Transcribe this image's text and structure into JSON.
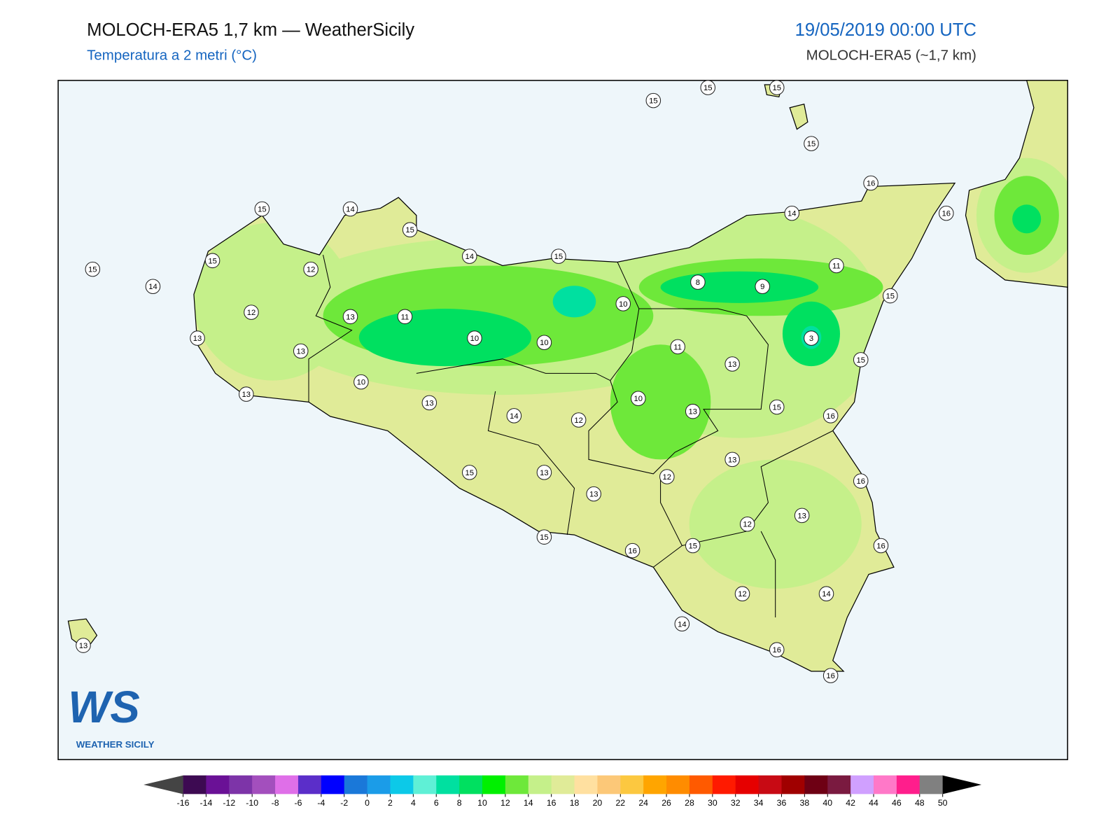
{
  "header": {
    "title": "MOLOCH-ERA5 1,7 km — WeatherSicily",
    "subtitle": "Temperatura a 2 metri (°C)",
    "date": "19/05/2019 00:00 UTC",
    "model": "MOLOCH-ERA5 (~1,7 km)"
  },
  "stations": [
    15,
    15,
    15,
    15,
    16,
    16,
    14,
    11,
    15,
    9,
    8,
    10,
    15,
    14,
    15,
    14,
    15,
    15,
    15,
    14,
    12,
    12,
    13,
    13,
    13,
    11,
    10,
    10,
    11,
    13,
    3,
    15,
    10,
    13,
    13,
    10,
    13,
    15,
    16,
    14,
    12,
    13,
    16,
    15,
    13,
    12,
    13,
    13,
    12,
    16,
    15,
    16,
    15,
    12,
    14,
    14,
    16,
    16,
    13
  ],
  "colorbar": {
    "ticks": [
      -16,
      -14,
      -12,
      -10,
      -8,
      -6,
      -4,
      -2,
      0,
      2,
      4,
      6,
      8,
      10,
      12,
      14,
      16,
      18,
      20,
      22,
      24,
      26,
      28,
      30,
      32,
      34,
      36,
      38,
      40,
      42,
      44,
      46,
      48,
      50
    ],
    "colors": [
      "#3d0a52",
      "#6a1196",
      "#7d34a8",
      "#a34fbd",
      "#df6fe8",
      "#5b2ec9",
      "#0000ff",
      "#1a78d9",
      "#1b9ce8",
      "#0cc9e8",
      "#5ff0d6",
      "#00e0a0",
      "#00e060",
      "#00f000",
      "#6ee83a",
      "#c5f08a",
      "#e0eb98",
      "#ffe0a0",
      "#fcc878",
      "#fcc840",
      "#ffa500",
      "#ff8c00",
      "#ff5a00",
      "#ff1a00",
      "#e60000",
      "#c80a14",
      "#a00000",
      "#6e0014",
      "#7a1a40",
      "#d0a0ff",
      "#ff78c8",
      "#ff1e8c",
      "#808080"
    ],
    "under": "#444444",
    "over": "#000000"
  },
  "logo": {
    "initials": "WS",
    "name": "WEATHER SICILY"
  }
}
